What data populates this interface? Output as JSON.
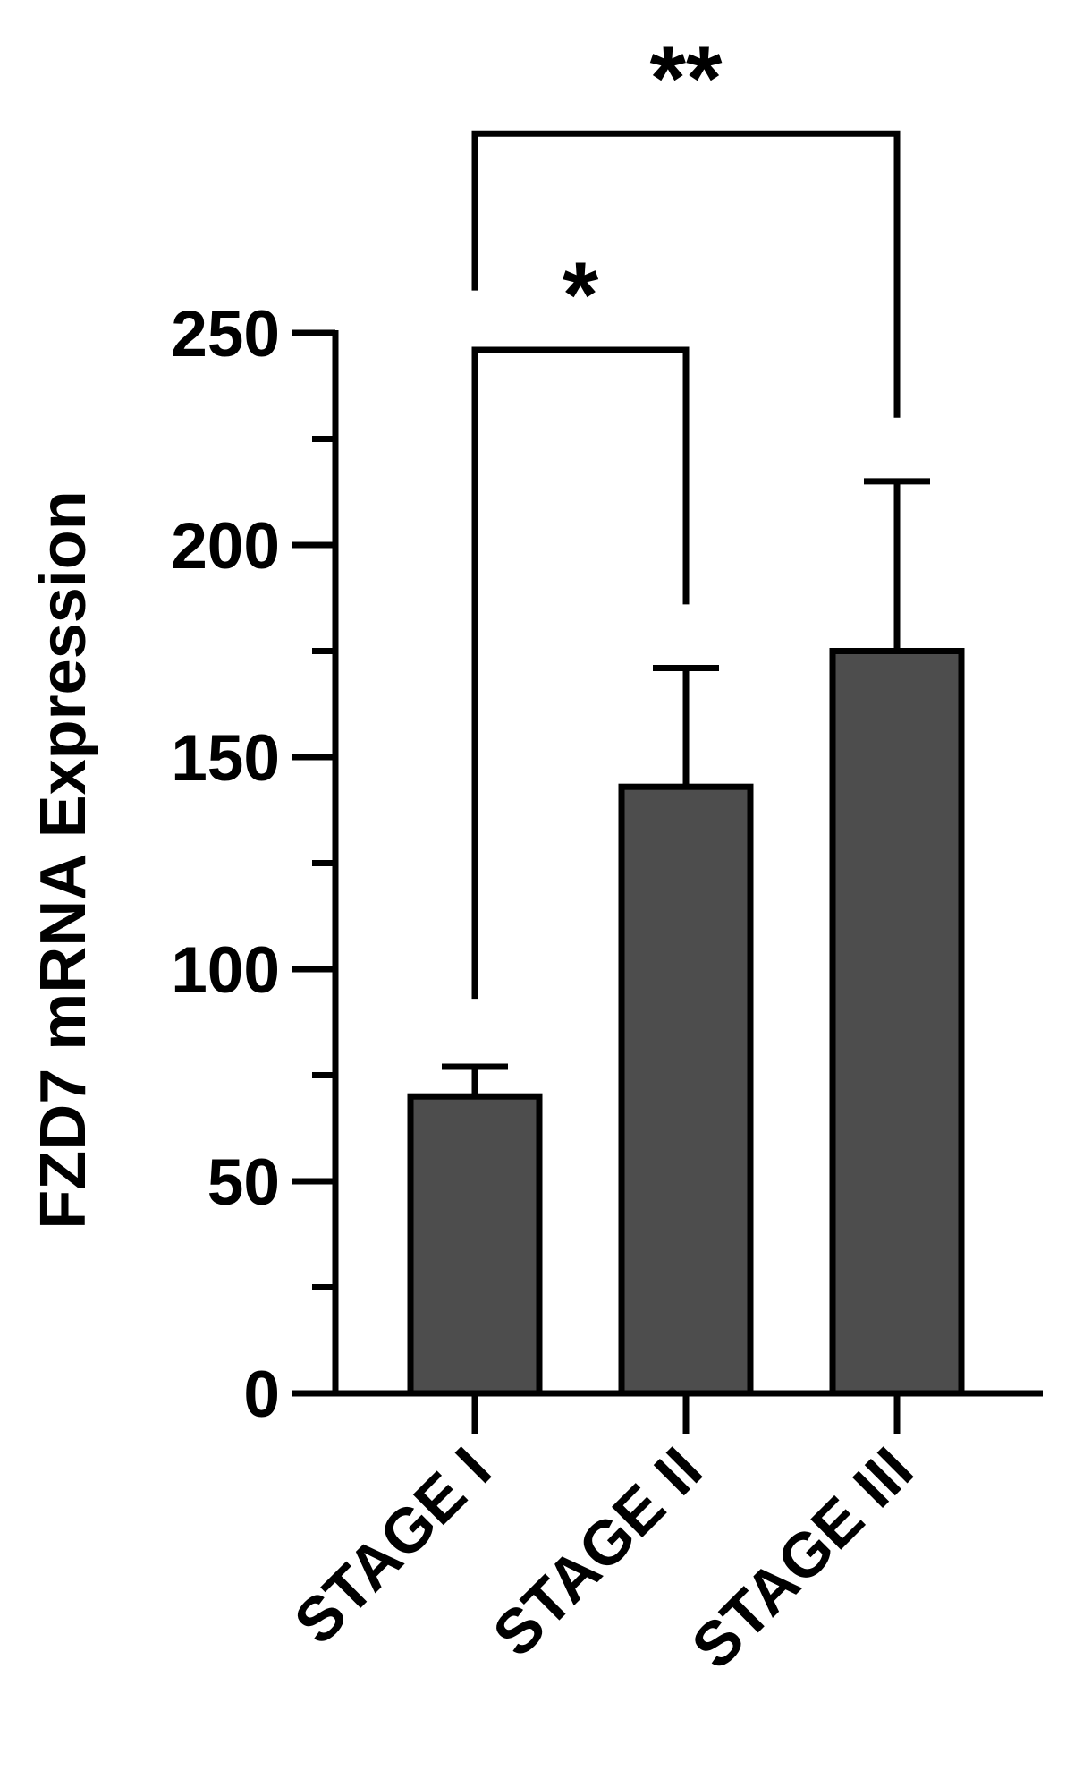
{
  "chart_data": {
    "type": "bar",
    "title": "",
    "xlabel": "",
    "ylabel": "FZD7 mRNA Expression",
    "ylim": [
      0,
      250
    ],
    "yticks": [
      0,
      50,
      100,
      150,
      200,
      250
    ],
    "ytick_labels": [
      "0",
      "50",
      "100",
      "150",
      "200",
      "250"
    ],
    "minor_yticks": [
      25,
      75,
      125,
      175,
      225
    ],
    "categories": [
      "STAGE I",
      "STAGE II",
      "STAGE III"
    ],
    "values": [
      70,
      143,
      175
    ],
    "error_upper": [
      77,
      171,
      215
    ],
    "bar_color": "#4d4d4d",
    "edge_color": "#000000",
    "grid": false,
    "legend": "none",
    "significance": [
      {
        "from": "STAGE I",
        "to": "STAGE II",
        "label": "*",
        "left_drop_to": 93,
        "right_drop_to": 186,
        "level": 246
      },
      {
        "from": "STAGE I",
        "to": "STAGE III",
        "label": "**",
        "left_drop_to": 260,
        "right_drop_to": 230,
        "level": 297
      }
    ]
  }
}
